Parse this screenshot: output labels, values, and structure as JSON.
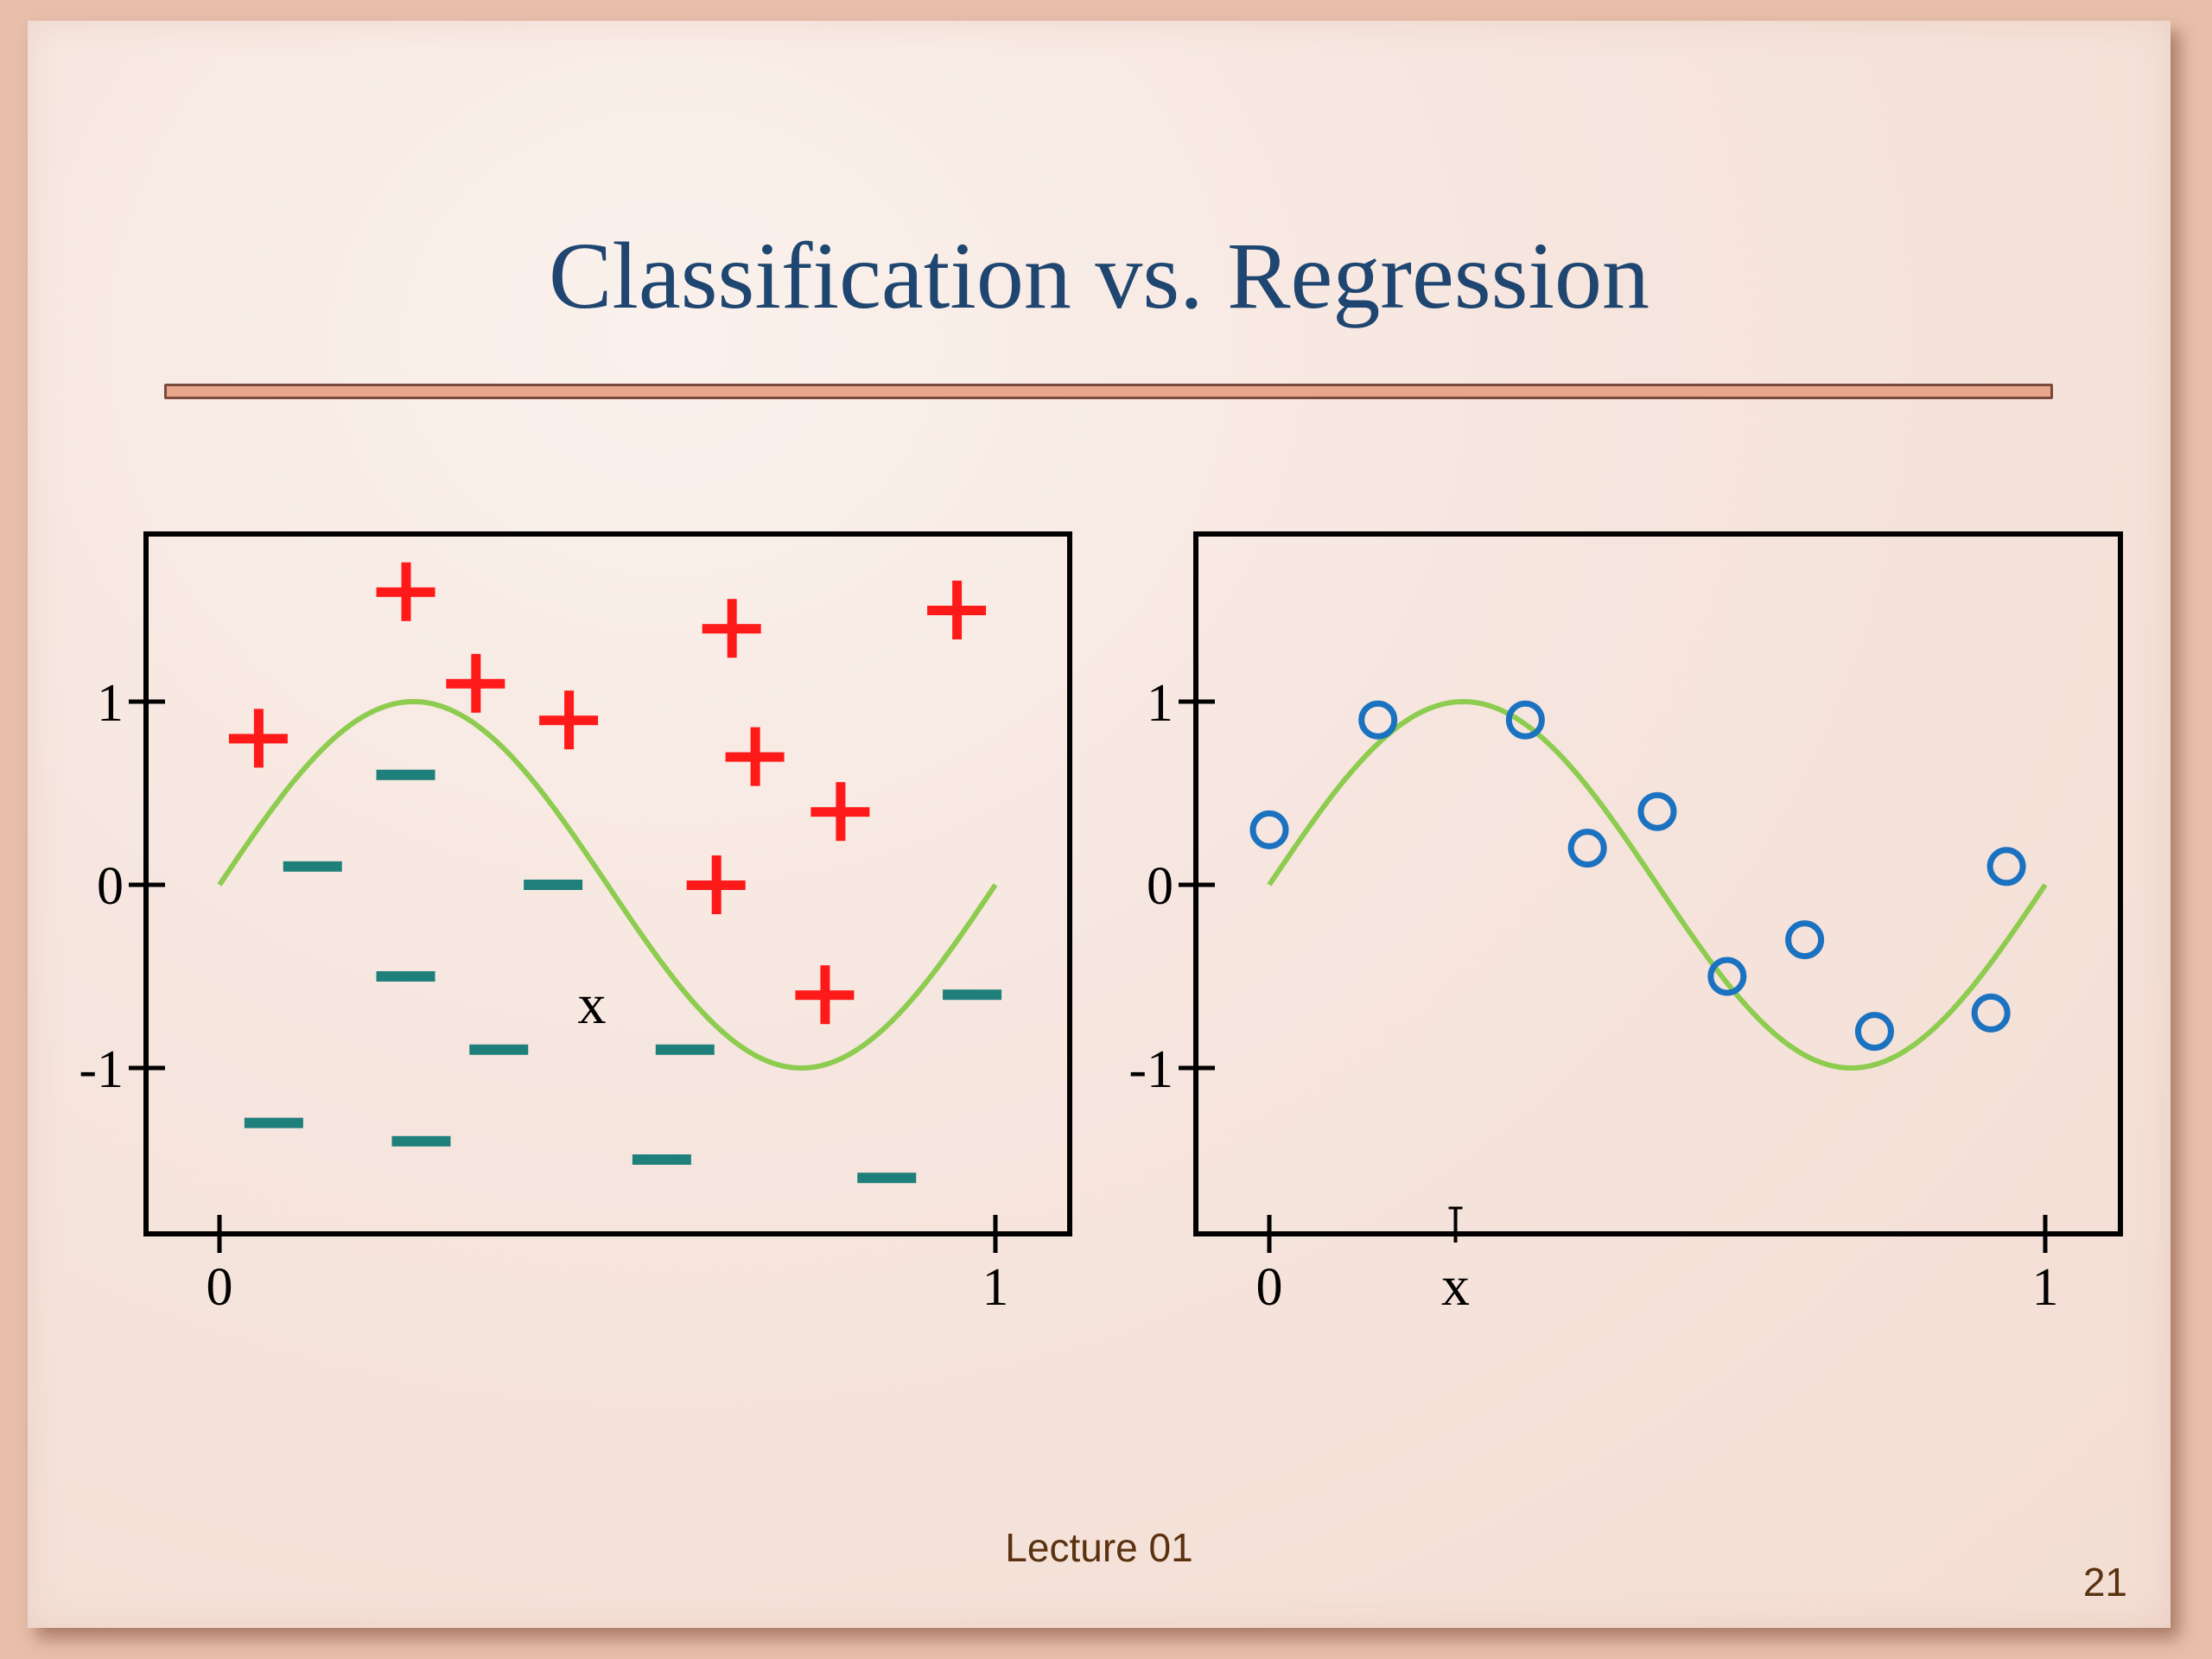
{
  "title": "Classification vs. Regression",
  "footer": "Lecture 01",
  "slide_number": "21",
  "colors": {
    "curve": "#8dcc4f",
    "plus": "#ff1a1a",
    "minus": "#1f7f7a",
    "circle": "#1b72c0",
    "axis": "#000000"
  },
  "chart_data": [
    {
      "type": "scatter",
      "subtype": "classification",
      "xlim": [
        -0.1,
        1.1
      ],
      "ylim": [
        -1.9,
        1.9
      ],
      "xticks": [
        0,
        1
      ],
      "xtick_labels": [
        "0",
        "1"
      ],
      "yticks": [
        1,
        0,
        -1
      ],
      "ytick_labels": [
        "1",
        "0",
        "-1"
      ],
      "curve": "sin(2*pi*x)",
      "annotations": [
        "x"
      ],
      "series": [
        {
          "marker": "plus",
          "points": [
            {
              "x": 0.05,
              "y": 0.8
            },
            {
              "x": 0.24,
              "y": 1.6
            },
            {
              "x": 0.33,
              "y": 1.1
            },
            {
              "x": 0.45,
              "y": 0.9
            },
            {
              "x": 0.66,
              "y": 1.4
            },
            {
              "x": 0.95,
              "y": 1.5
            },
            {
              "x": 0.69,
              "y": 0.7
            },
            {
              "x": 0.8,
              "y": 0.4
            },
            {
              "x": 0.64,
              "y": 0.0
            },
            {
              "x": 0.78,
              "y": -0.6
            }
          ]
        },
        {
          "marker": "minus",
          "points": [
            {
              "x": 0.24,
              "y": 0.6
            },
            {
              "x": 0.12,
              "y": 0.1
            },
            {
              "x": 0.43,
              "y": 0.0
            },
            {
              "x": 0.24,
              "y": -0.5
            },
            {
              "x": 0.36,
              "y": -0.9
            },
            {
              "x": 0.6,
              "y": -0.9
            },
            {
              "x": 0.97,
              "y": -0.6
            },
            {
              "x": 0.07,
              "y": -1.3
            },
            {
              "x": 0.26,
              "y": -1.4
            },
            {
              "x": 0.57,
              "y": -1.5
            },
            {
              "x": 0.86,
              "y": -1.6
            }
          ]
        }
      ]
    },
    {
      "type": "scatter",
      "subtype": "regression",
      "xlim": [
        -0.1,
        1.1
      ],
      "ylim": [
        -1.9,
        1.9
      ],
      "xticks": [
        0,
        1
      ],
      "xtick_labels": [
        "0",
        "1"
      ],
      "yticks": [
        1,
        0,
        -1
      ],
      "ytick_labels": [
        "1",
        "0",
        "-1"
      ],
      "curve": "sin(2*pi*x)",
      "annotations": [
        "x"
      ],
      "series": [
        {
          "marker": "circle",
          "points": [
            {
              "x": 0.0,
              "y": 0.3
            },
            {
              "x": 0.14,
              "y": 0.9
            },
            {
              "x": 0.33,
              "y": 0.9
            },
            {
              "x": 0.41,
              "y": 0.2
            },
            {
              "x": 0.5,
              "y": 0.4
            },
            {
              "x": 0.59,
              "y": -0.5
            },
            {
              "x": 0.69,
              "y": -0.3
            },
            {
              "x": 0.78,
              "y": -0.8
            },
            {
              "x": 0.93,
              "y": -0.7
            },
            {
              "x": 0.95,
              "y": 0.1
            }
          ]
        }
      ]
    }
  ]
}
